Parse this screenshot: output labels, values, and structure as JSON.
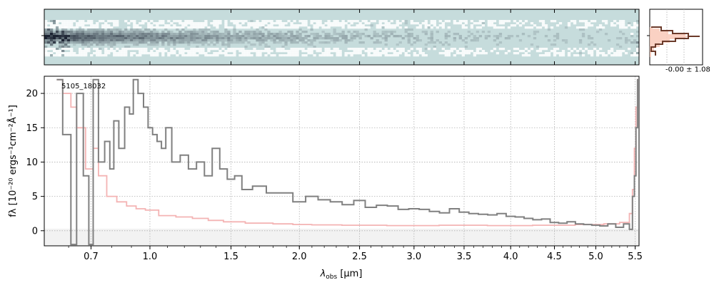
{
  "chart_data": [
    {
      "panel": "2d-spectrum",
      "type": "heatmap",
      "background_color": "#c6dcdc",
      "description_colors": {
        "dark": "#1a2332",
        "light": "#ffffff"
      }
    },
    {
      "panel": "profile",
      "type": "line",
      "annotation": "-0.00 ± 1.08",
      "line_color": "#6b3a2a",
      "fill_color": "#f9c9b9"
    },
    {
      "panel": "1d-spectrum",
      "type": "line",
      "title_label": "5105_18032",
      "xlabel": "λobs [μm]",
      "xlabel_main": "λ",
      "xlabel_sub": "obs",
      "xlabel_unit": " [μm]",
      "ylabel": "fλ [10⁻²⁰ ergs⁻¹cm⁻²Å⁻¹]",
      "ylim": [
        -2.2,
        22.5
      ],
      "xlim": [
        0.5,
        5.55
      ],
      "grid": true,
      "x_ticks": [
        0.7,
        1.0,
        1.5,
        2.0,
        2.5,
        3.0,
        3.5,
        4.0,
        4.5,
        5.0,
        5.5
      ],
      "x_tick_labels": [
        "0.7",
        "1.0",
        "1.5",
        "2.0",
        "2.5",
        "3.0",
        "3.5",
        "4.0",
        "4.5",
        "5.0",
        "5.5"
      ],
      "y_ticks": [
        0,
        5,
        10,
        15,
        20
      ],
      "y_tick_labels": [
        "0",
        "5",
        "10",
        "15",
        "20"
      ],
      "series": [
        {
          "color": "#808080",
          "x": [
            0.55,
            0.6,
            0.62,
            0.65,
            0.68,
            0.7,
            0.72,
            0.75,
            0.78,
            0.8,
            0.82,
            0.85,
            0.88,
            0.9,
            0.92,
            0.95,
            0.98,
            1.0,
            1.03,
            1.05,
            1.08,
            1.1,
            1.15,
            1.2,
            1.25,
            1.3,
            1.35,
            1.4,
            1.45,
            1.5,
            1.55,
            1.6,
            1.7,
            1.8,
            1.9,
            2.0,
            2.1,
            2.2,
            2.3,
            2.4,
            2.5,
            2.6,
            2.7,
            2.8,
            2.9,
            3.0,
            3.1,
            3.2,
            3.3,
            3.4,
            3.5,
            3.6,
            3.7,
            3.8,
            3.9,
            4.0,
            4.1,
            4.2,
            4.3,
            4.4,
            4.5,
            4.6,
            4.7,
            4.8,
            4.9,
            5.0,
            5.1,
            5.2,
            5.3,
            5.4,
            5.45,
            5.48,
            5.5,
            5.52,
            5.54
          ],
          "y": [
            22,
            14,
            -2,
            20,
            8,
            -2,
            22,
            10,
            13,
            9,
            16,
            12,
            18,
            17,
            22,
            20,
            18,
            15,
            14,
            13,
            12,
            15,
            10,
            11,
            9,
            10,
            8,
            12,
            9,
            7.5,
            8,
            6,
            6.5,
            5.5,
            5.5,
            4.2,
            5,
            4.5,
            4.2,
            3.8,
            4.4,
            3.4,
            3.7,
            3.6,
            3.1,
            3.2,
            3.1,
            2.8,
            2.6,
            3.2,
            2.7,
            2.5,
            2.4,
            2.3,
            2.5,
            2.1,
            2.0,
            1.8,
            1.6,
            1.7,
            1.2,
            1.1,
            1.3,
            1.0,
            0.9,
            0.8,
            0.7,
            1.0,
            0.5,
            1.0,
            0.2,
            5,
            8,
            15,
            22
          ]
        },
        {
          "color": "#f4b3b3",
          "x": [
            0.55,
            0.6,
            0.62,
            0.65,
            0.7,
            0.72,
            0.75,
            0.8,
            0.85,
            0.9,
            0.95,
            1.0,
            1.1,
            1.2,
            1.3,
            1.4,
            1.5,
            1.7,
            1.9,
            2.0,
            2.2,
            2.5,
            3.0,
            3.5,
            4.0,
            4.5,
            5.0,
            5.2,
            5.4,
            5.45,
            5.48,
            5.5,
            5.52,
            5.54
          ],
          "y": [
            22,
            20,
            18,
            15,
            9,
            12,
            8,
            5,
            4.2,
            3.6,
            3.2,
            3.0,
            2.2,
            2.0,
            1.8,
            1.5,
            1.3,
            1.1,
            1.0,
            0.9,
            0.85,
            0.8,
            0.75,
            0.8,
            0.75,
            0.8,
            0.9,
            1.0,
            1.2,
            2.5,
            6,
            12,
            18,
            22
          ]
        }
      ]
    }
  ]
}
